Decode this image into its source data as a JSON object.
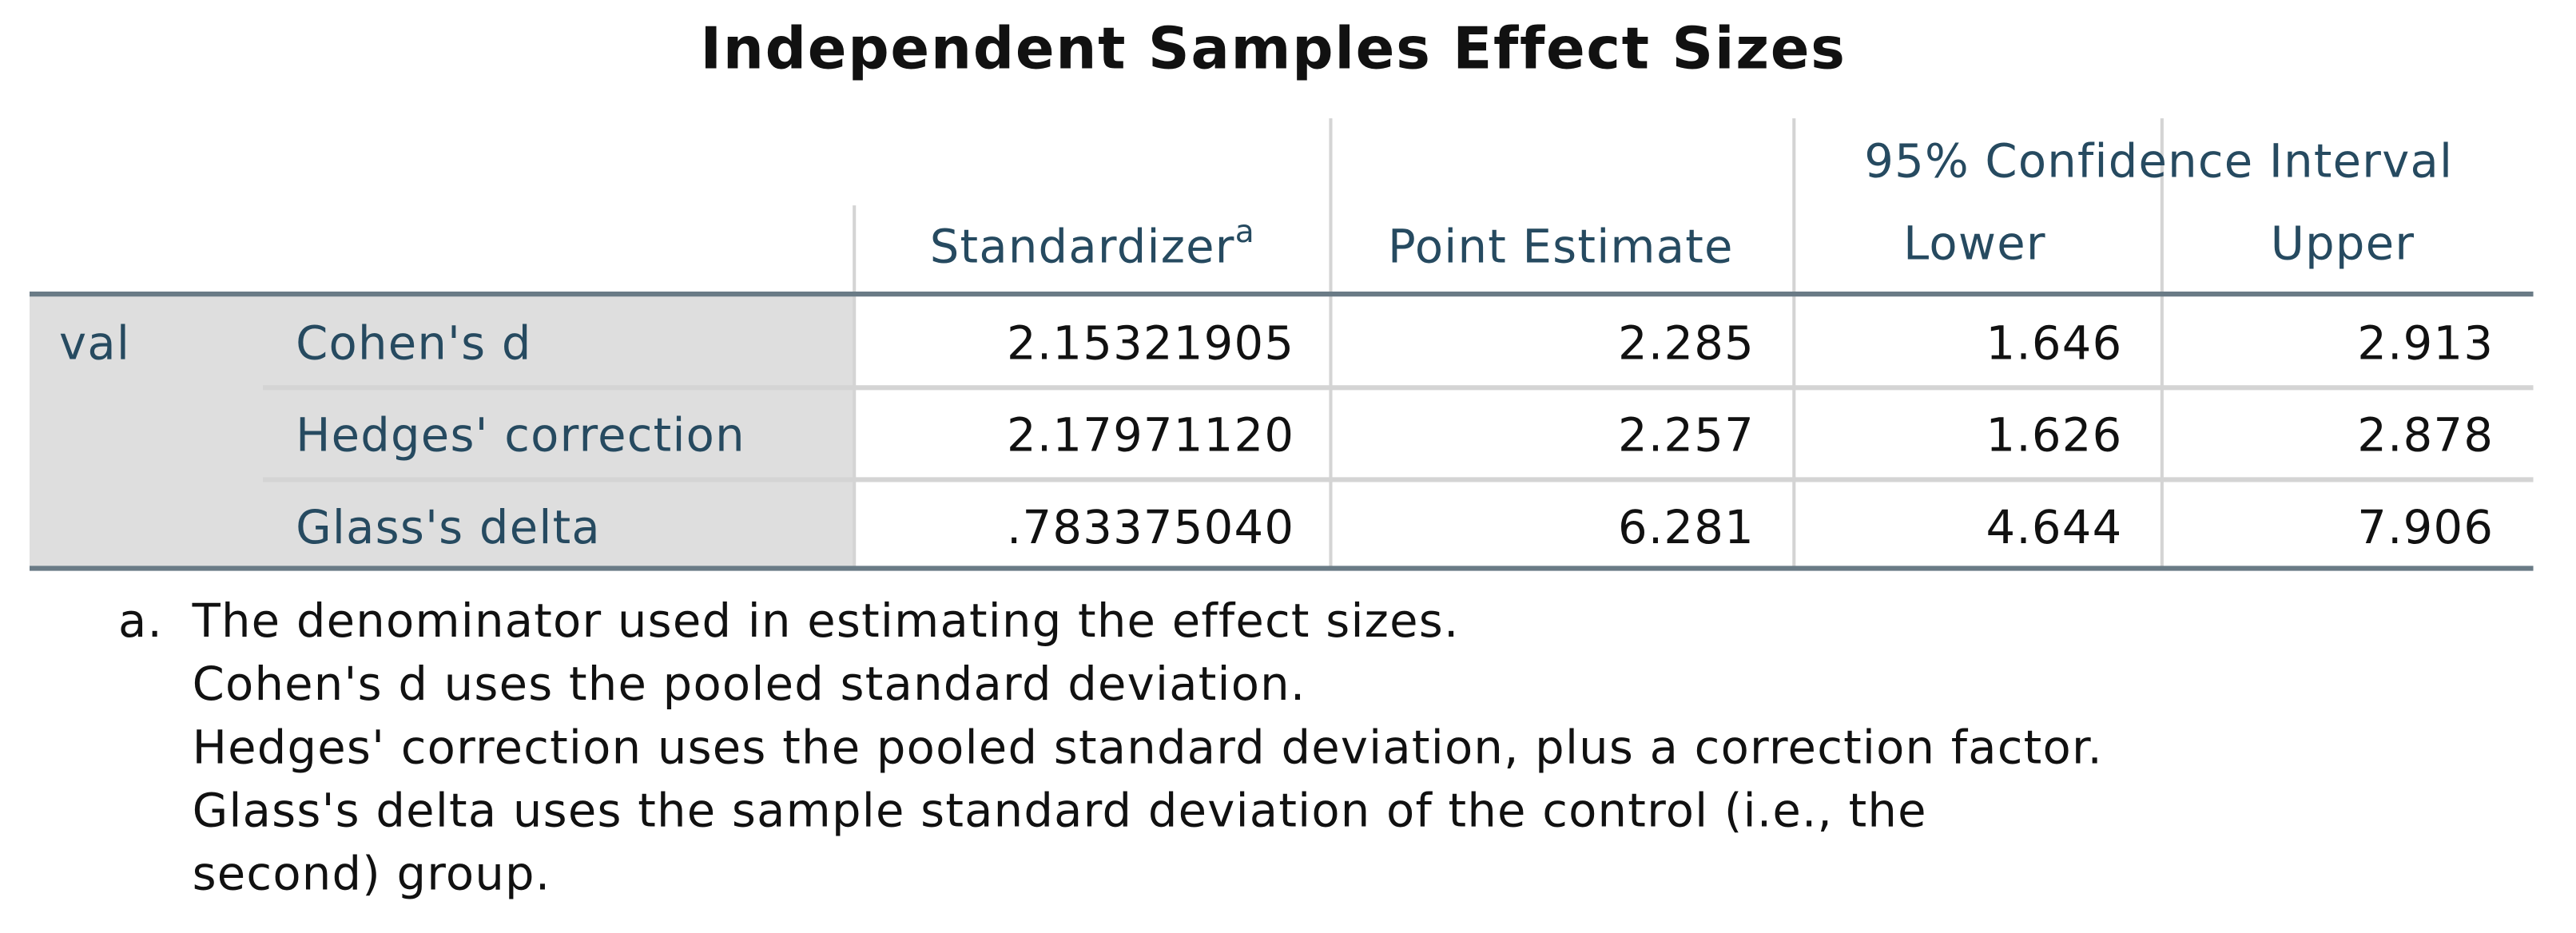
{
  "title": "Independent Samples Effect Sizes",
  "header": {
    "group": "95% Confidence Interval",
    "columns": [
      "Standardizer",
      "Point Estimate",
      "Lower",
      "Upper"
    ],
    "footnote_mark": "a"
  },
  "table": {
    "variable": "val",
    "rows": [
      {
        "label": "Cohen's d",
        "values": [
          "2.15321905",
          "2.285",
          "1.646",
          "2.913"
        ]
      },
      {
        "label": "Hedges' correction",
        "values": [
          "2.17971120",
          "2.257",
          "1.626",
          "2.878"
        ]
      },
      {
        "label": "Glass's delta",
        "values": [
          ".783375040",
          "6.281",
          "4.644",
          "7.906"
        ]
      }
    ]
  },
  "footnote": {
    "mark": "a.",
    "lines": [
      "The denominator used in estimating the effect sizes.",
      "Cohen's d uses the pooled standard deviation.",
      "Hedges' correction uses the pooled standard deviation, plus a correction factor.",
      "Glass's delta uses the sample standard deviation of the control (i.e., the",
      "second) group."
    ]
  }
}
